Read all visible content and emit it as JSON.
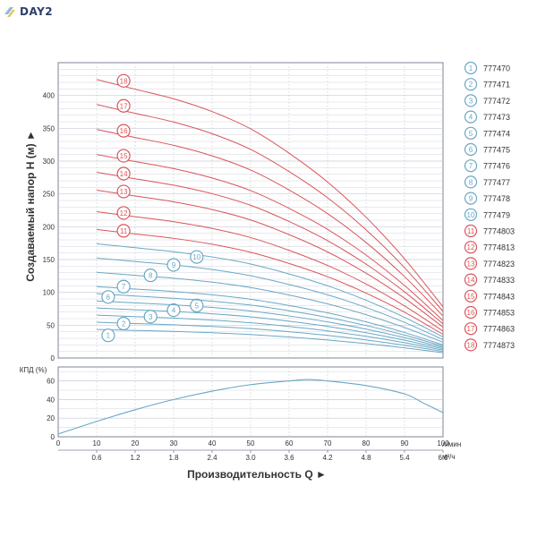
{
  "brand": {
    "name": "DAY2"
  },
  "colors": {
    "blue": "#6aa7c4",
    "red": "#d9555a",
    "grid": "#c6ccd6",
    "axis": "#7d8596",
    "text": "#333333"
  },
  "chart_data": [
    {
      "type": "line",
      "title": "",
      "ylabel": "Создаваемый напор H (м) ►",
      "xlabel": "",
      "xlim": [
        0,
        100
      ],
      "ylim": [
        0,
        450
      ],
      "yticks": [
        0,
        50,
        100,
        150,
        200,
        250,
        300,
        350,
        400
      ],
      "x": [
        0,
        10,
        20,
        30,
        40,
        50,
        60,
        70,
        80,
        90,
        100
      ],
      "grid": true,
      "legend": "right",
      "series": [
        {
          "name": "777470",
          "num": "1",
          "color": "blue",
          "values": [
            null,
            43.5,
            42,
            40.5,
            38.5,
            35.8,
            32,
            27.5,
            22,
            15.5,
            8
          ]
        },
        {
          "name": "777471",
          "num": "2",
          "color": "blue",
          "values": [
            null,
            54.5,
            52.5,
            50.6,
            48.1,
            44.8,
            40,
            34.4,
            27.5,
            19.4,
            10
          ]
        },
        {
          "name": "777472",
          "num": "3",
          "color": "blue",
          "values": [
            null,
            65.3,
            63,
            60.8,
            57.8,
            53.7,
            48,
            41.3,
            33,
            23.3,
            12
          ]
        },
        {
          "name": "777473",
          "num": "4",
          "color": "blue",
          "values": [
            null,
            76.2,
            73.5,
            70.9,
            67.4,
            62.7,
            56,
            48.1,
            38.5,
            27.1,
            14
          ]
        },
        {
          "name": "777474",
          "num": "5",
          "color": "blue",
          "values": [
            null,
            87,
            84,
            81,
            77,
            71.6,
            64,
            55,
            44,
            31,
            16
          ]
        },
        {
          "name": "777475",
          "num": "6",
          "color": "blue",
          "values": [
            null,
            98,
            94.5,
            91.1,
            86.6,
            80.6,
            72,
            61.9,
            49.5,
            34.9,
            18
          ]
        },
        {
          "name": "777476",
          "num": "7",
          "color": "blue",
          "values": [
            null,
            108.8,
            105,
            101.3,
            96.3,
            89.5,
            80,
            68.8,
            55,
            38.8,
            20
          ]
        },
        {
          "name": "777477",
          "num": "8",
          "color": "blue",
          "values": [
            null,
            130.5,
            126,
            121.5,
            115.5,
            107.4,
            96,
            82.5,
            66,
            46.5,
            24
          ]
        },
        {
          "name": "777478",
          "num": "9",
          "color": "blue",
          "values": [
            null,
            152.3,
            147,
            141.8,
            134.8,
            125.3,
            112,
            96.3,
            77,
            54.3,
            28
          ]
        },
        {
          "name": "777479",
          "num": "10",
          "color": "blue",
          "values": [
            null,
            174,
            168,
            162,
            154,
            143.2,
            128,
            110,
            88,
            62,
            32
          ]
        },
        {
          "name": "7774803",
          "num": "11",
          "color": "red",
          "values": [
            null,
            195.8,
            189,
            182.3,
            173.3,
            161.1,
            144,
            123.8,
            99,
            69.8,
            36
          ]
        },
        {
          "name": "7774813",
          "num": "12",
          "color": "red",
          "values": [
            null,
            223,
            215.3,
            207.6,
            197.4,
            183.5,
            164,
            141,
            112.8,
            79.4,
            41
          ]
        },
        {
          "name": "7774823",
          "num": "13",
          "color": "red",
          "values": [
            null,
            255.7,
            246.8,
            238,
            226.2,
            210.3,
            188,
            161.6,
            129.3,
            91.1,
            47
          ]
        },
        {
          "name": "7774833",
          "num": "14",
          "color": "red",
          "values": [
            null,
            282.9,
            273,
            263.3,
            250.3,
            232.7,
            208,
            178.8,
            143,
            100.8,
            52
          ]
        },
        {
          "name": "7774843",
          "num": "15",
          "color": "red",
          "values": [
            null,
            310.1,
            299.3,
            288.6,
            274.3,
            255.1,
            228,
            196,
            156.8,
            110.4,
            57
          ]
        },
        {
          "name": "7774853",
          "num": "16",
          "color": "red",
          "values": [
            null,
            348.2,
            336,
            324,
            308,
            286.4,
            256,
            220,
            176,
            124,
            64
          ]
        },
        {
          "name": "7774863",
          "num": "17",
          "color": "red",
          "values": [
            null,
            386.2,
            372.8,
            359.5,
            341.8,
            317.8,
            284,
            244.1,
            195.3,
            137.6,
            71
          ]
        },
        {
          "name": "7774873",
          "num": "18",
          "color": "red",
          "values": [
            null,
            424.3,
            409.5,
            394.9,
            375.4,
            349.1,
            312,
            268.1,
            214.5,
            151.1,
            78
          ]
        }
      ]
    },
    {
      "type": "line",
      "title": "",
      "ylabel": "КПД (%)",
      "xlabel": "Производительность Q ►",
      "xlim": [
        0,
        100
      ],
      "ylim": [
        0,
        75
      ],
      "yticks": [
        0,
        20,
        40,
        60
      ],
      "xticks_top": [
        "10",
        "20",
        "30",
        "40",
        "50",
        "60",
        "70",
        "80",
        "90",
        "100"
      ],
      "xticks_top_values": [
        10,
        20,
        30,
        40,
        50,
        60,
        70,
        80,
        90,
        100
      ],
      "xunit_top": "л/мин",
      "xticks_bottom": [
        "0.6",
        "1.2",
        "1.8",
        "2.4",
        "3.0",
        "3.6",
        "4.2",
        "4.8",
        "5.4",
        "6.0"
      ],
      "xunit_bottom": "м³/ч",
      "grid": true,
      "series": [
        {
          "name": "",
          "values": [
            3,
            16.5,
            29,
            40,
            49,
            56,
            60,
            61.5,
            60,
            55,
            46,
            36,
            26
          ],
          "x": [
            0,
            10,
            20,
            30,
            40,
            50,
            60,
            65,
            70,
            80,
            90,
            95,
            100
          ]
        }
      ]
    }
  ]
}
